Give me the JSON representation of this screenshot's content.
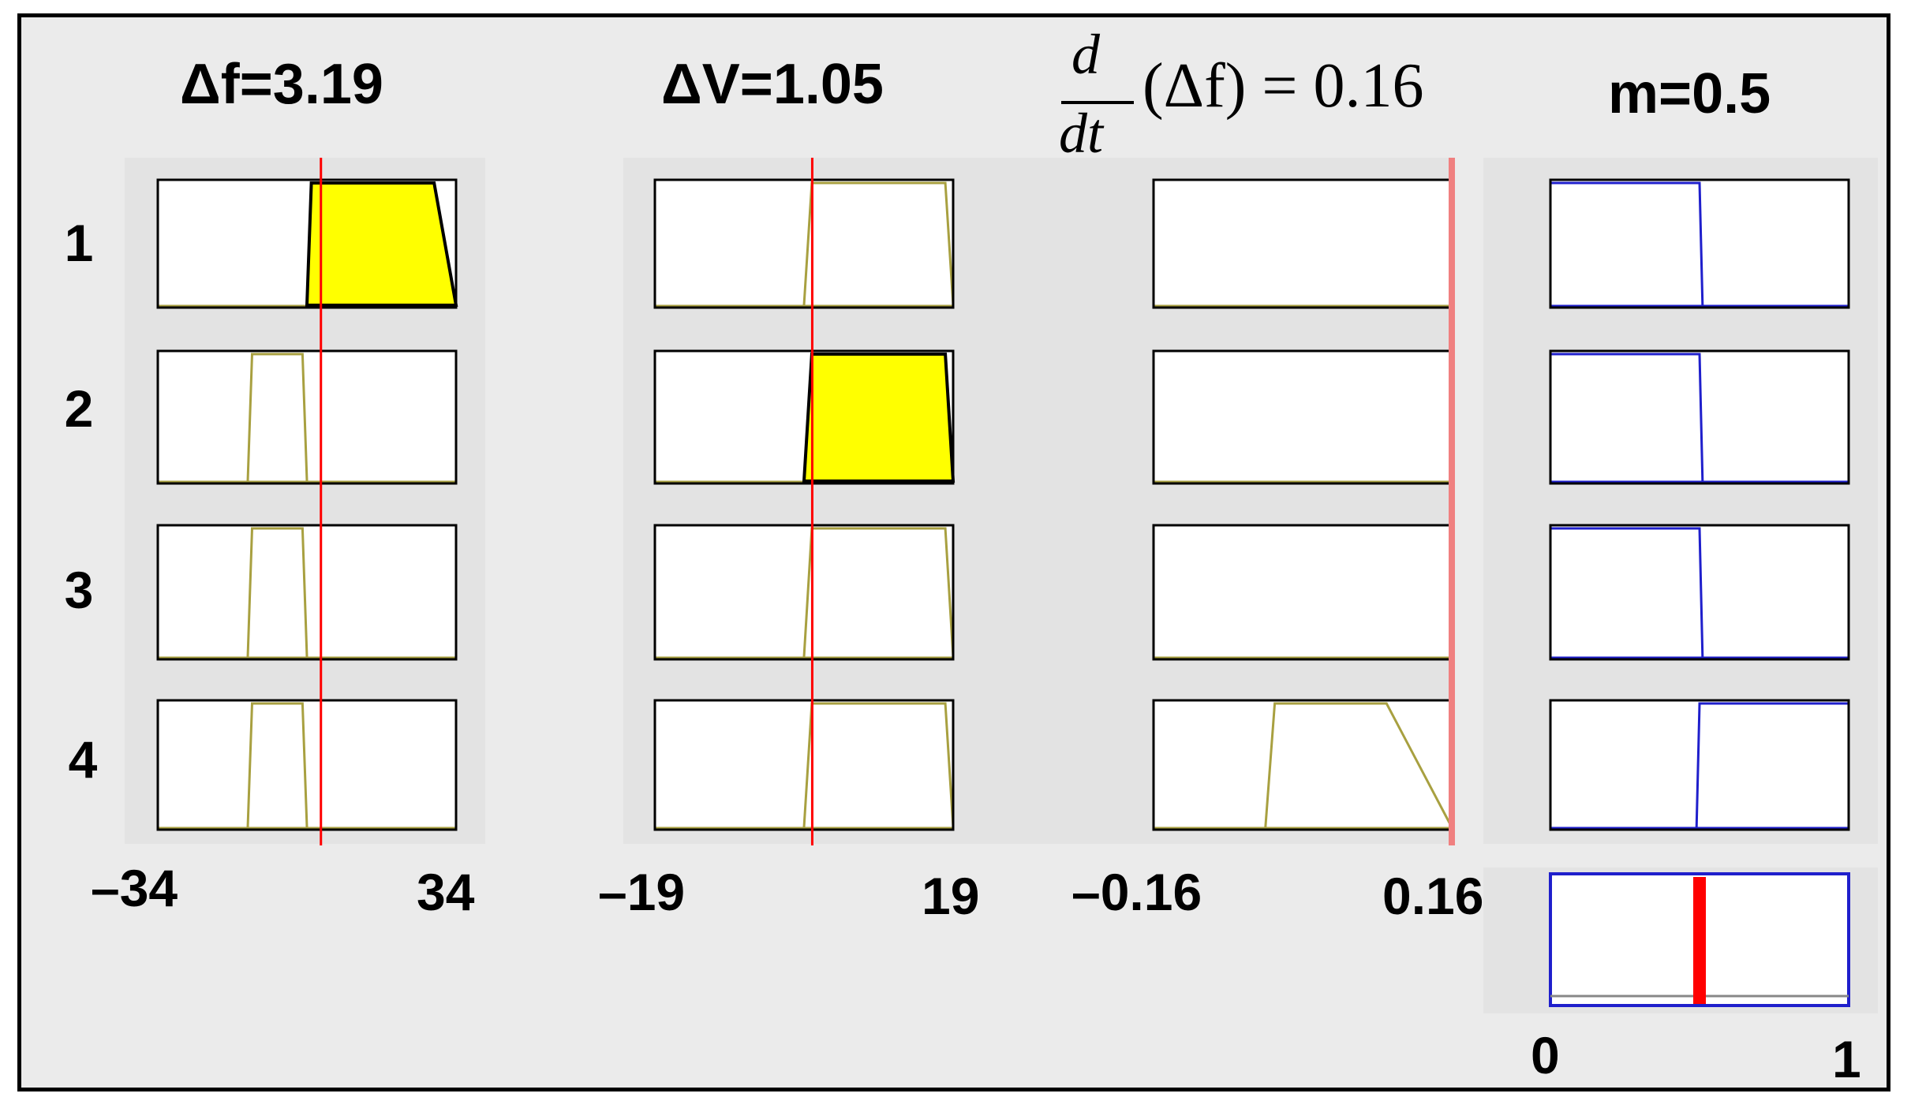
{
  "headers": {
    "col1": "Δf=3.19",
    "col2": "ΔV=1.05",
    "col3_numerator": "d",
    "col3_denominator": "dt",
    "col3_rest": "(Δf) = 0.16",
    "col4": "m=0.5"
  },
  "rule_labels": [
    "1",
    "2",
    "3",
    "4"
  ],
  "axis_ticks": {
    "col1_min": "–34",
    "col1_max": "34",
    "col2_min": "–19",
    "col2_max": "19",
    "col3_min": "–0.16",
    "col3_max": "0.16",
    "out_min": "0",
    "out_max": "1"
  },
  "colors": {
    "frame_bg": "#ebebeb",
    "panel_bg": "#e3e3e3",
    "fill": "#ffff00",
    "mf_line": "#a8a040",
    "out_line": "#1f1fcc",
    "input_marker": "#ff0000",
    "col3_marker": "#f08080",
    "result_marker": "#ff0000"
  },
  "inputs": {
    "delta_f": {
      "value": 3.19,
      "range": [
        -34,
        34
      ]
    },
    "delta_V": {
      "value": 1.05,
      "range": [
        -19,
        19
      ]
    },
    "d_delta_f_dt": {
      "value": 0.16,
      "range": [
        -0.16,
        0.16
      ]
    }
  },
  "output": {
    "value": 0.5,
    "range": [
      0,
      1
    ]
  },
  "rules": [
    {
      "col1": {
        "mf": [
          0,
          1,
          29,
          34
        ],
        "fill": true
      },
      "col2": {
        "mf": [
          0,
          1,
          18,
          19
        ],
        "fill": false
      },
      "col3": null,
      "col4": {
        "mf": [
          0,
          0,
          0.5,
          0.51
        ]
      }
    },
    {
      "col1": {
        "mf": [
          -13.5,
          -12.5,
          -1,
          0
        ],
        "fill": false
      },
      "col2": {
        "mf": [
          0,
          1,
          18,
          19
        ],
        "fill": true
      },
      "col3": null,
      "col4": {
        "mf": [
          0,
          0,
          0.5,
          0.51
        ]
      }
    },
    {
      "col1": {
        "mf": [
          -13.5,
          -12.5,
          -1,
          0
        ],
        "fill": false
      },
      "col2": {
        "mf": [
          0,
          1,
          18,
          19
        ],
        "fill": false
      },
      "col3": null,
      "col4": {
        "mf": [
          0,
          0,
          0.5,
          0.51
        ]
      }
    },
    {
      "col1": {
        "mf": [
          -13.5,
          -12.5,
          -1,
          0
        ],
        "fill": false
      },
      "col2": {
        "mf": [
          0,
          1,
          18,
          19
        ],
        "fill": false
      },
      "col3": {
        "mf": [
          -0.04,
          -0.03,
          0.09,
          0.16
        ],
        "fill": false
      },
      "col4": {
        "mf": [
          0.49,
          0.5,
          1,
          1
        ]
      }
    }
  ]
}
